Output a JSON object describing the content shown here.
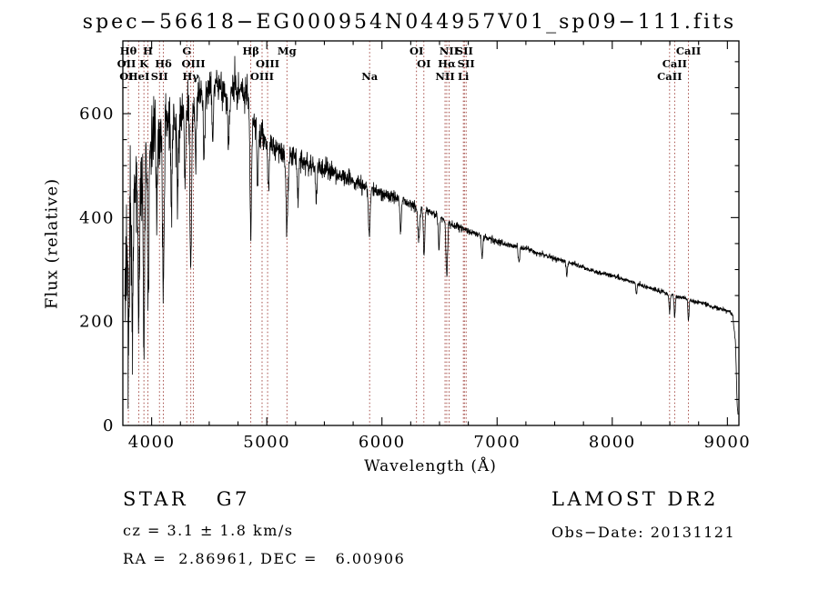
{
  "chart_data": {
    "type": "line",
    "title": "spec−56618−EG000954N044957V01_sp09−111.fits",
    "xlabel": "Wavelength (Å)",
    "ylabel": "Flux (relative)",
    "xlim": [
      3750,
      9100
    ],
    "ylim": [
      0,
      740
    ],
    "x_ticks": [
      4000,
      5000,
      6000,
      7000,
      8000,
      9000
    ],
    "y_ticks": [
      0,
      200,
      400,
      600
    ],
    "grid": false,
    "legend": "none",
    "line_color": "#000000",
    "marker_color": "#9c3a34",
    "spectral_lines": [
      {
        "label": "Hθ",
        "wavelength": 3798,
        "row": 1
      },
      {
        "label": "H",
        "wavelength": 3968,
        "row": 1
      },
      {
        "label": "G",
        "wavelength": 4305,
        "row": 1
      },
      {
        "label": "Hβ",
        "wavelength": 4861,
        "row": 1
      },
      {
        "label": "Mg",
        "wavelength": 5175,
        "row": 1
      },
      {
        "label": "OI",
        "wavelength": 6300,
        "row": 1
      },
      {
        "label": "NII",
        "wavelength": 6583,
        "row": 1
      },
      {
        "label": "SII",
        "wavelength": 6716,
        "row": 1
      },
      {
        "label": "CaII",
        "wavelength": 8662,
        "row": 1
      },
      {
        "label": "OII",
        "wavelength": 3727,
        "row": 2
      },
      {
        "label": "K",
        "wavelength": 3933,
        "row": 2
      },
      {
        "label": "Hδ",
        "wavelength": 4102,
        "row": 2
      },
      {
        "label": "OIII",
        "wavelength": 4363,
        "row": 2
      },
      {
        "label": "OIII",
        "wavelength": 5007,
        "row": 2
      },
      {
        "label": "OI",
        "wavelength": 6364,
        "row": 2
      },
      {
        "label": "Hα",
        "wavelength": 6563,
        "row": 2
      },
      {
        "label": "SII",
        "wavelength": 6731,
        "row": 2
      },
      {
        "label": "CaII",
        "wavelength": 8542,
        "row": 2
      },
      {
        "label": "OI",
        "wavelength": 3727,
        "row": 3
      },
      {
        "label": "HeI",
        "wavelength": 3889,
        "row": 3
      },
      {
        "label": "SII",
        "wavelength": 4068,
        "row": 3
      },
      {
        "label": "Hγ",
        "wavelength": 4340,
        "row": 3
      },
      {
        "label": "OIII",
        "wavelength": 4959,
        "row": 3
      },
      {
        "label": "Na",
        "wavelength": 5893,
        "row": 3
      },
      {
        "label": "NII",
        "wavelength": 6548,
        "row": 3
      },
      {
        "label": "Li",
        "wavelength": 6707,
        "row": 3
      },
      {
        "label": "CaII",
        "wavelength": 8498,
        "row": 3
      }
    ],
    "spectrum": {
      "sample_step": 2,
      "noise_seed": 42,
      "continuum": [
        [
          3766,
          240
        ],
        [
          3800,
          430
        ],
        [
          3845,
          480
        ],
        [
          3885,
          450
        ],
        [
          3950,
          530
        ],
        [
          4010,
          565
        ],
        [
          4080,
          580
        ],
        [
          4150,
          600
        ],
        [
          4230,
          590
        ],
        [
          4300,
          600
        ],
        [
          4380,
          625
        ],
        [
          4460,
          640
        ],
        [
          4560,
          655
        ],
        [
          4650,
          645
        ],
        [
          4760,
          640
        ],
        [
          4830,
          640
        ],
        [
          4900,
          580
        ],
        [
          4980,
          550
        ],
        [
          5060,
          535
        ],
        [
          5160,
          525
        ],
        [
          5290,
          512
        ],
        [
          5420,
          500
        ],
        [
          5550,
          490
        ],
        [
          5700,
          475
        ],
        [
          5850,
          460
        ],
        [
          6000,
          448
        ],
        [
          6150,
          435
        ],
        [
          6300,
          422
        ],
        [
          6450,
          408
        ],
        [
          6600,
          388
        ],
        [
          6750,
          375
        ],
        [
          6900,
          362
        ],
        [
          7050,
          350
        ],
        [
          7250,
          340
        ],
        [
          7450,
          325
        ],
        [
          7650,
          312
        ],
        [
          7850,
          296
        ],
        [
          8050,
          285
        ],
        [
          8250,
          270
        ],
        [
          8450,
          255
        ],
        [
          8650,
          243
        ],
        [
          8850,
          230
        ],
        [
          9000,
          221
        ],
        [
          9045,
          214
        ],
        [
          9070,
          160
        ],
        [
          9085,
          40
        ],
        [
          9092,
          25
        ]
      ],
      "absorption_lines": [
        [
          3727,
          260,
          6
        ],
        [
          3798,
          300,
          6
        ],
        [
          3835,
          280,
          6
        ],
        [
          3889,
          300,
          6
        ],
        [
          3933,
          330,
          6
        ],
        [
          3970,
          300,
          6
        ],
        [
          4045,
          180,
          6
        ],
        [
          4102,
          320,
          7
        ],
        [
          4172,
          150,
          6
        ],
        [
          4226,
          140,
          6
        ],
        [
          4290,
          120,
          6
        ],
        [
          4340,
          300,
          7
        ],
        [
          4383,
          130,
          6
        ],
        [
          4455,
          120,
          6
        ],
        [
          4530,
          100,
          6
        ],
        [
          4668,
          120,
          6
        ],
        [
          4861,
          240,
          7
        ],
        [
          4920,
          110,
          6
        ],
        [
          5015,
          90,
          6
        ],
        [
          5175,
          140,
          9
        ],
        [
          5270,
          90,
          7
        ],
        [
          5430,
          70,
          6
        ],
        [
          5890,
          90,
          8
        ],
        [
          6162,
          60,
          6
        ],
        [
          6320,
          60,
          8
        ],
        [
          6366,
          90,
          6
        ],
        [
          6495,
          60,
          6
        ],
        [
          6563,
          105,
          7
        ],
        [
          6870,
          40,
          6
        ],
        [
          7190,
          30,
          6
        ],
        [
          7605,
          25,
          6
        ],
        [
          8210,
          20,
          5
        ],
        [
          8498,
          35,
          5
        ],
        [
          8542,
          40,
          5
        ],
        [
          8662,
          40,
          5
        ]
      ],
      "noise_amplitude": [
        [
          3766,
          110
        ],
        [
          3850,
          95
        ],
        [
          3950,
          80
        ],
        [
          4050,
          65
        ],
        [
          4200,
          50
        ],
        [
          4400,
          38
        ],
        [
          4700,
          30
        ],
        [
          5000,
          24
        ],
        [
          5300,
          20
        ],
        [
          5700,
          15
        ],
        [
          6000,
          11
        ],
        [
          6400,
          8
        ],
        [
          6800,
          6
        ],
        [
          7300,
          5
        ],
        [
          8000,
          4
        ],
        [
          9000,
          3.5
        ]
      ]
    }
  },
  "annotations": {
    "class_label": "STAR   G7",
    "survey": "LAMOST DR2",
    "cz": "cz = 3.1 ± 1.8 km/s",
    "obs_date": "Obs−Date: 20131121",
    "ra_dec": "RA =  2.86961, DEC =   6.00906"
  }
}
